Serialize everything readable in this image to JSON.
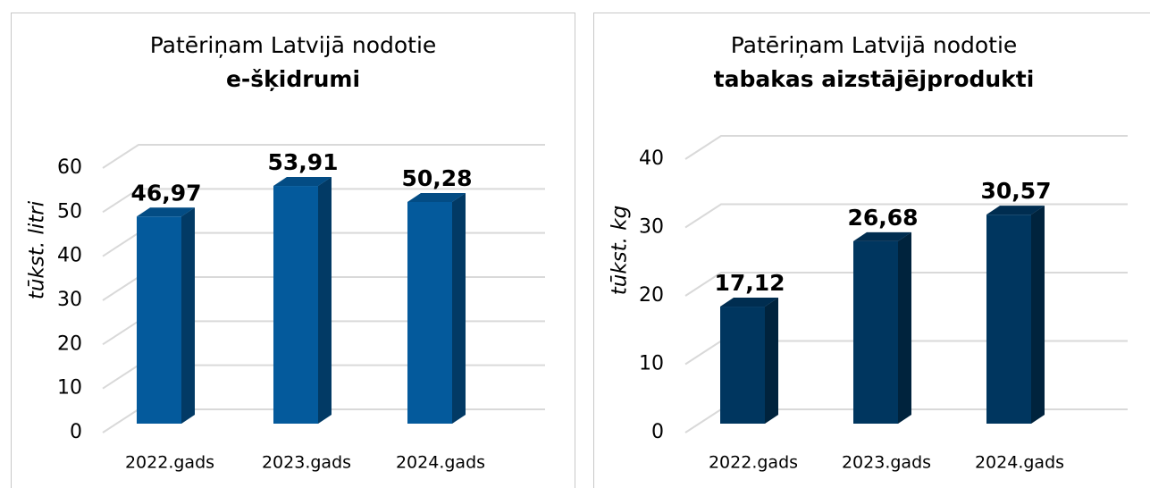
{
  "chart_data": [
    {
      "type": "bar3d",
      "title": "Patēriņam Latvijā nodotie",
      "subtitle": "e-šķidrumi",
      "y_label": "tūkst. litri",
      "categories": [
        "2022.gads",
        "2023.gads",
        "2024.gads"
      ],
      "values": [
        46.97,
        53.91,
        50.28
      ],
      "value_labels": [
        "46,97",
        "53,91",
        "50,28"
      ],
      "color": "#045a9c",
      "ylim": [
        0,
        60
      ],
      "yticks": [
        0,
        10,
        20,
        30,
        40,
        50,
        60
      ],
      "grid": true
    },
    {
      "type": "bar3d",
      "title": "Patēriņam Latvijā nodotie",
      "subtitle": "tabakas aizstājējprodukti",
      "y_label": "tūkst. kg",
      "categories": [
        "2022.gads",
        "2023.gads",
        "2024.gads"
      ],
      "values": [
        17.12,
        26.68,
        30.57
      ],
      "value_labels": [
        "17,12",
        "26,68",
        "30,57"
      ],
      "color": "#00365f",
      "ylim": [
        0,
        40
      ],
      "yticks": [
        0,
        10,
        20,
        30,
        40
      ],
      "grid": true
    }
  ]
}
